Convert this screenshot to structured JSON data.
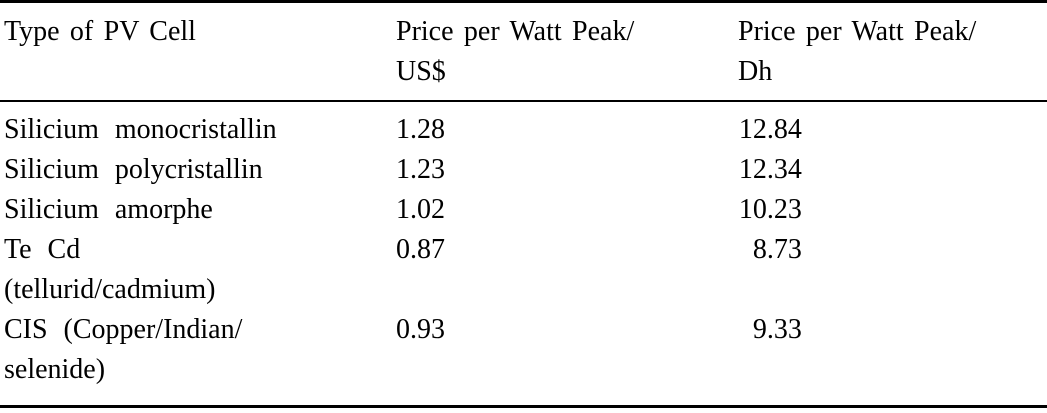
{
  "table": {
    "columns": [
      {
        "label": "Type of PV Cell"
      },
      {
        "label": "Price per Watt Peak/\nUS$"
      },
      {
        "label": "Price per Watt Peak/\nDh"
      }
    ],
    "rows": [
      {
        "type": "Silicium monocristallin",
        "price_usd": "1.28",
        "price_dh": "12.84"
      },
      {
        "type": "Silicium polycristallin",
        "price_usd": "1.23",
        "price_dh": "12.34"
      },
      {
        "type": "Silicium amorphe",
        "price_usd": "1.02",
        "price_dh": "10.23"
      },
      {
        "type": "Te Cd\n(tellurid/cadmium)",
        "price_usd": "0.87",
        "price_dh": "8.73"
      },
      {
        "type": "CIS (Copper/Indian/\nselenide)",
        "price_usd": "0.93",
        "price_dh": "9.33"
      }
    ],
    "text_color": "#000000",
    "rule_color": "#000000",
    "background_color": "#ffffff"
  },
  "chart_data": {
    "type": "table",
    "title": "",
    "columns": [
      "Type of PV Cell",
      "Price per Watt Peak/US$",
      "Price per Watt Peak/Dh"
    ],
    "rows": [
      [
        "Silicium monocristallin",
        1.28,
        12.84
      ],
      [
        "Silicium polycristallin",
        1.23,
        12.34
      ],
      [
        "Silicium amorphe",
        1.02,
        10.23
      ],
      [
        "Te Cd (tellurid/cadmium)",
        0.87,
        8.73
      ],
      [
        "CIS (Copper/Indian/selenide)",
        0.93,
        9.33
      ]
    ]
  }
}
